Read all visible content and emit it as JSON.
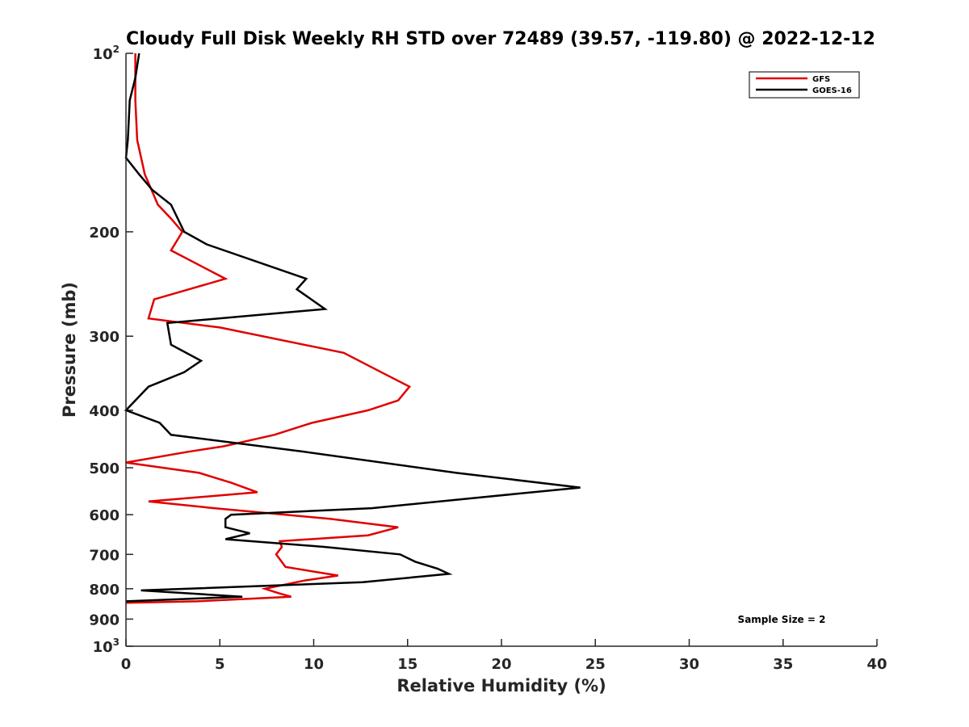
{
  "chart_data": {
    "type": "line",
    "title": "Cloudy Full Disk Weekly RH STD over 72489 (39.57, -119.80) @ 2022-12-12",
    "xlabel": "Relative Humidity (%)",
    "ylabel": "Pressure (mb)",
    "xlim": [
      0,
      40
    ],
    "ylim": [
      100,
      1000
    ],
    "yscale": "log",
    "y_reversed": true,
    "x_ticks": [
      0,
      5,
      10,
      15,
      20,
      25,
      30,
      35,
      40
    ],
    "y_ticks": [
      {
        "value": 100,
        "label": "10",
        "sup": "2"
      },
      {
        "value": 200,
        "label": "200"
      },
      {
        "value": 300,
        "label": "300"
      },
      {
        "value": 400,
        "label": "400"
      },
      {
        "value": 500,
        "label": "500"
      },
      {
        "value": 600,
        "label": "600"
      },
      {
        "value": 700,
        "label": "700"
      },
      {
        "value": 800,
        "label": "800"
      },
      {
        "value": 900,
        "label": "900"
      },
      {
        "value": 1000,
        "label": "10",
        "sup": "3"
      }
    ],
    "legend_position": "top-right",
    "annotation": "Sample Size = 2",
    "series": [
      {
        "name": "GFS",
        "color": "#e00000",
        "x": [
          0.5,
          0.5,
          0.5,
          0.6,
          1.0,
          1.7,
          2.4,
          3.0,
          2.4,
          5.3,
          1.5,
          1.2,
          5.0,
          11.6,
          13.6,
          15.1,
          14.5,
          12.9,
          9.9,
          7.9,
          5.2,
          3.3,
          0.0,
          3.9,
          5.6,
          7.0,
          1.2,
          4.7,
          10.9,
          14.5,
          12.9,
          8.2,
          8.3,
          8.0,
          8.5,
          11.3,
          9.5,
          7.4,
          8.2,
          8.8,
          3.8,
          0.0
        ],
        "y": [
          100,
          110,
          120,
          140,
          160,
          180,
          190,
          200,
          215,
          240,
          260,
          280,
          290,
          320,
          345,
          365,
          385,
          400,
          420,
          440,
          460,
          470,
          490,
          510,
          530,
          550,
          570,
          585,
          610,
          630,
          650,
          665,
          680,
          700,
          735,
          760,
          775,
          800,
          815,
          825,
          840,
          845
        ]
      },
      {
        "name": "GOES-16",
        "color": "#000000",
        "x": [
          0.7,
          0.5,
          0.2,
          0.1,
          0.0,
          0.7,
          1.4,
          2.4,
          3.1,
          4.3,
          9.6,
          9.1,
          10.6,
          2.2,
          2.4,
          4.0,
          3.1,
          1.2,
          0.0,
          1.8,
          2.4,
          9.5,
          17.6,
          24.2,
          19.1,
          13.1,
          5.6,
          5.3,
          5.3,
          6.6,
          5.3,
          10.6,
          14.6,
          15.4,
          16.6,
          17.2,
          12.6,
          0.8,
          6.2,
          0.0
        ],
        "y": [
          100,
          110,
          120,
          140,
          150,
          160,
          170,
          180,
          200,
          210,
          240,
          250,
          270,
          285,
          310,
          330,
          345,
          365,
          400,
          420,
          440,
          470,
          510,
          540,
          560,
          585,
          600,
          610,
          630,
          645,
          660,
          680,
          700,
          720,
          740,
          755,
          780,
          805,
          825,
          840
        ]
      }
    ]
  }
}
